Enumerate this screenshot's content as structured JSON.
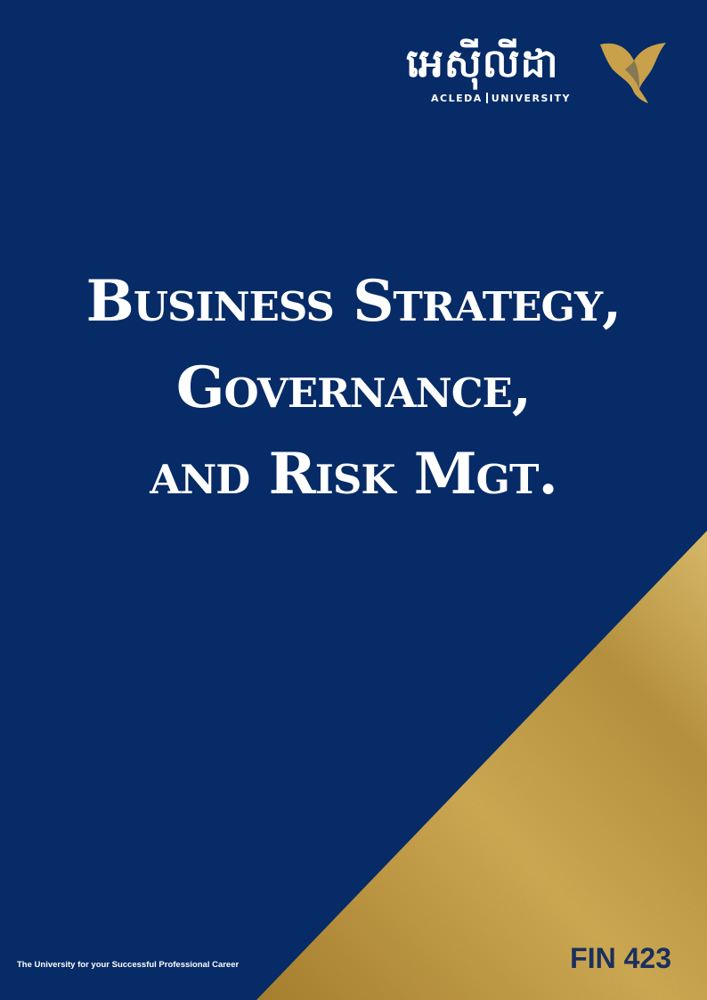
{
  "logo": {
    "khmer_name": "អេស៊ីលីដា",
    "name_left": "ACLEDA",
    "name_right": "UNIVERSITY",
    "accent_color": "#c9a14a"
  },
  "title": {
    "lines": [
      "Business Strategy,",
      "Governance,",
      "and Risk Mgt."
    ]
  },
  "footer": {
    "tagline": "The University for your Successful Professional Career",
    "course_code": "FIN 423"
  },
  "colors": {
    "background": "#062b66",
    "gold": "#c9a14a",
    "code_text": "#1a2f5e"
  }
}
